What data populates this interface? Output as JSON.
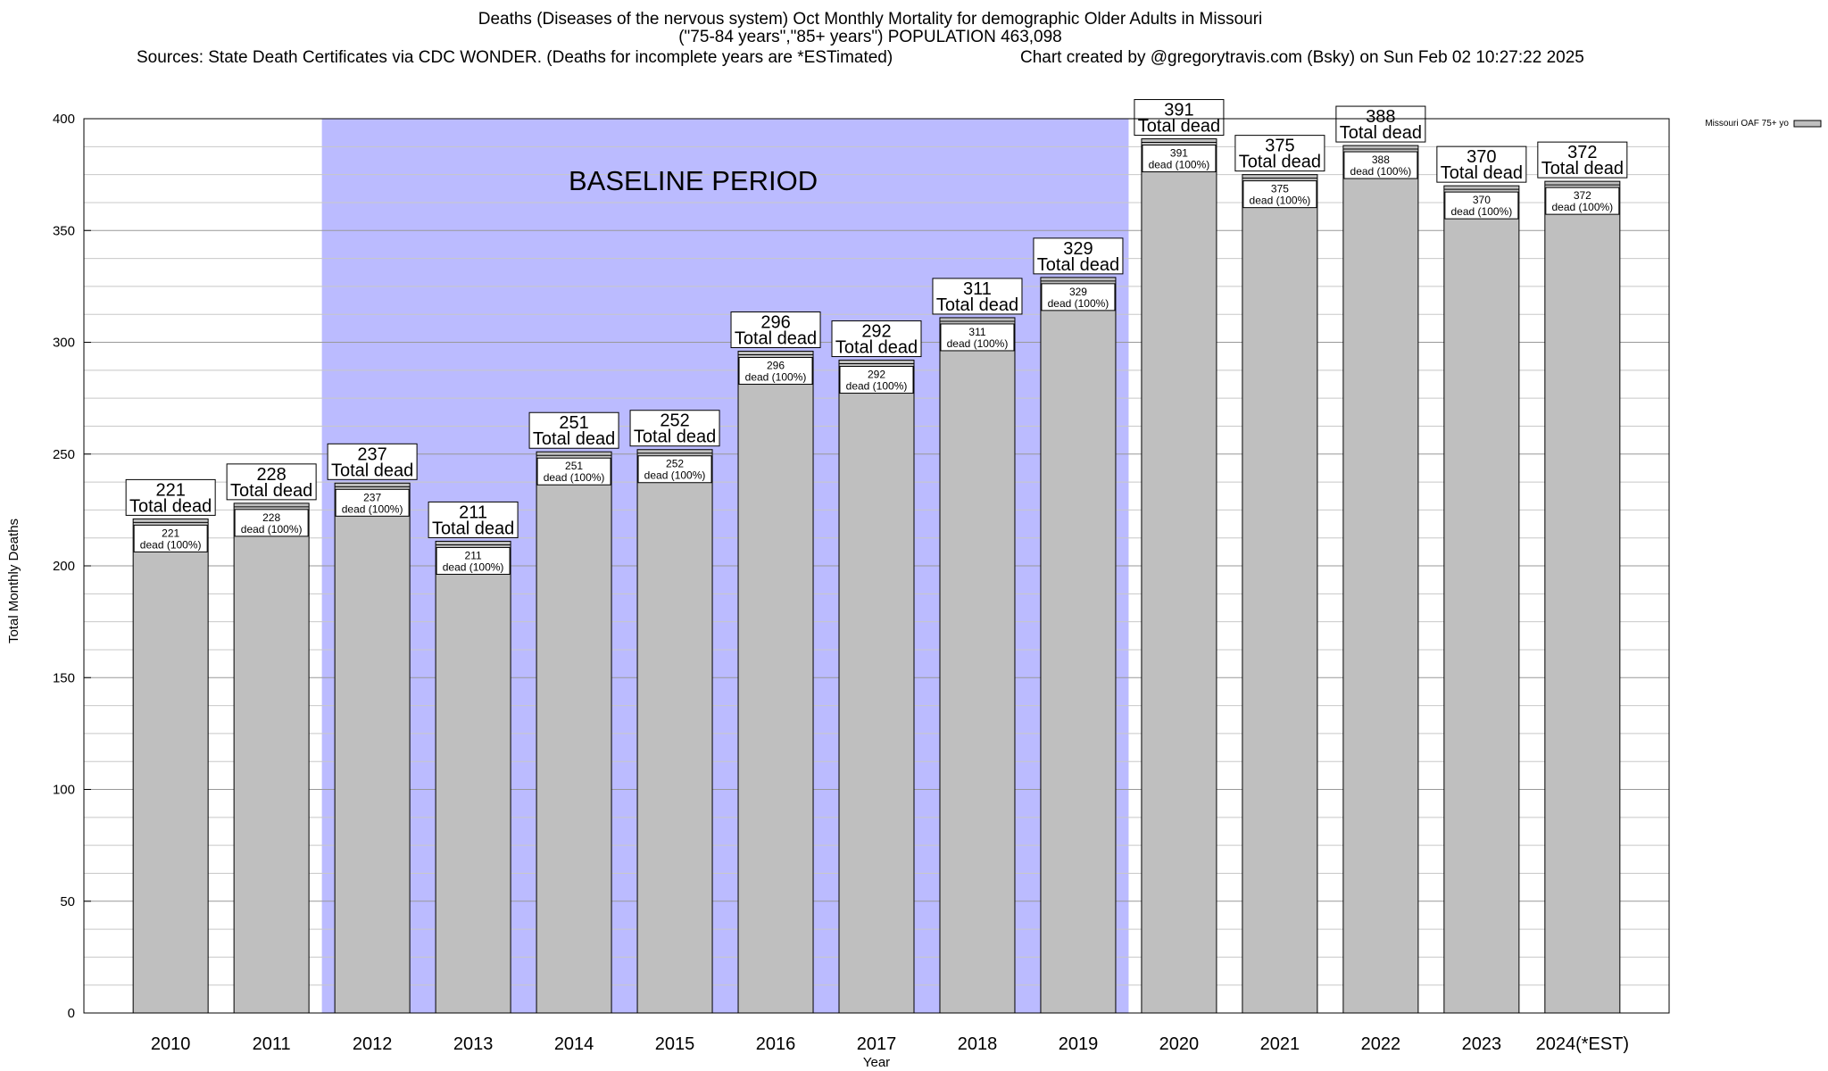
{
  "title": {
    "line1": "Deaths (Diseases of the nervous system) Oct Monthly Mortality for demographic Older Adults in Missouri",
    "line2": "(\"75-84 years\",\"85+ years\") POPULATION 463,098",
    "sources": "Sources: State Death Certificates via CDC WONDER. (Deaths for incomplete years are *ESTimated)",
    "credit": "Chart created by @gregorytravis.com (Bsky) on Sun Feb 02 10:27:22 2025"
  },
  "chart_data": {
    "type": "bar",
    "categories": [
      "2010",
      "2011",
      "2012",
      "2013",
      "2014",
      "2015",
      "2016",
      "2017",
      "2018",
      "2019",
      "2020",
      "2021",
      "2022",
      "2023",
      "2024(*EST)"
    ],
    "series": [
      {
        "name": "Missouri OAF 75+ yo",
        "values": [
          221,
          228,
          237,
          211,
          251,
          252,
          296,
          292,
          311,
          329,
          391,
          375,
          388,
          370,
          372
        ]
      }
    ],
    "xlabel": "Year",
    "ylabel": "Total Monthly Deaths",
    "ylim": [
      0,
      400
    ],
    "yticks": [
      0,
      50,
      100,
      150,
      200,
      250,
      300,
      350,
      400
    ],
    "grid": true,
    "legend_position": "top-right",
    "baseline_period": {
      "label": "BASELINE PERIOD",
      "from": "2012",
      "to": "2019",
      "color": "#bbbbff"
    },
    "label_top_text": "Total dead",
    "label_inner_suffix": "dead (100%)",
    "bar_color": "#bfbfbf"
  }
}
